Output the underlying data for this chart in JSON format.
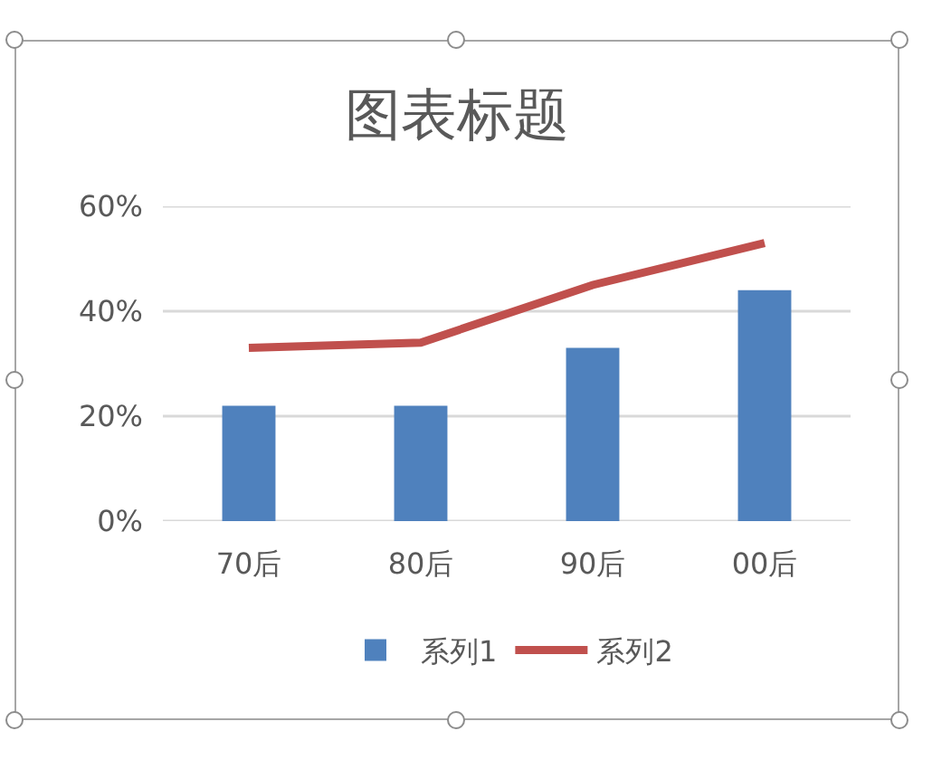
{
  "chart_data": {
    "type": "bar",
    "title": "图表标题",
    "categories": [
      "70后",
      "80后",
      "90后",
      "00后"
    ],
    "series": [
      {
        "name": "系列1",
        "color": "#4f81bd",
        "values": [
          22,
          22,
          33,
          44
        ]
      },
      {
        "name": "系列2",
        "type": "line",
        "color": "#c0504d",
        "values": [
          33,
          34,
          45,
          53
        ]
      }
    ],
    "ylim": [
      0,
      60
    ],
    "yticks": [
      {
        "value": 0,
        "label": "0%"
      },
      {
        "value": 20,
        "label": "20%"
      },
      {
        "value": 40,
        "label": "40%"
      },
      {
        "value": 60,
        "label": "60%"
      }
    ],
    "grid": "y",
    "legend": "bottom",
    "marker": "none"
  }
}
